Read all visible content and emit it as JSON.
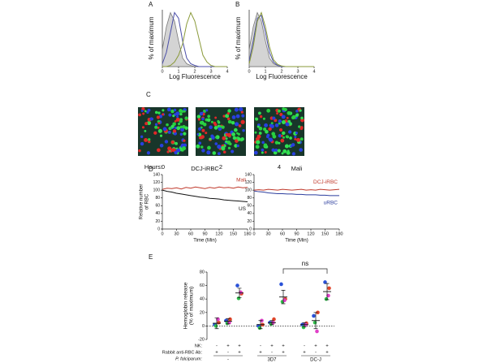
{
  "chart_data": [
    {
      "type": "line",
      "panel": "A",
      "xlabel": "Log Fluorescence",
      "ylabel": "% of maximum",
      "xlim": [
        0,
        4
      ],
      "xticks": [
        0,
        1,
        2,
        3,
        4
      ],
      "ylim": [
        0,
        100
      ],
      "x": [
        0,
        0.25,
        0.5,
        0.75,
        1,
        1.25,
        1.5,
        1.75,
        2,
        2.25,
        2.5,
        2.75,
        3,
        3.25,
        3.5,
        3.75,
        4
      ],
      "series": [
        {
          "color": "#7a7a7a",
          "fill": true,
          "values": [
            30,
            70,
            95,
            80,
            45,
            15,
            5,
            2,
            0,
            0,
            0,
            0,
            0,
            0,
            0,
            0,
            0
          ]
        },
        {
          "color": "#4b4fa8",
          "fill": false,
          "values": [
            5,
            25,
            60,
            95,
            85,
            45,
            15,
            5,
            2,
            0,
            0,
            0,
            0,
            0,
            0,
            0,
            0
          ]
        },
        {
          "color": "#8a9a3a",
          "fill": false,
          "values": [
            0,
            0,
            2,
            8,
            20,
            40,
            75,
            95,
            80,
            50,
            20,
            8,
            2,
            0,
            0,
            0,
            0
          ]
        }
      ]
    },
    {
      "type": "line",
      "panel": "B",
      "xlabel": "Log Fluorescence",
      "ylabel": "% of maximum",
      "xlim": [
        0,
        4
      ],
      "xticks": [
        0,
        1,
        2,
        3,
        4
      ],
      "ylim": [
        0,
        100
      ],
      "x": [
        0,
        0.25,
        0.5,
        0.75,
        1,
        1.25,
        1.5,
        1.75,
        2,
        2.25,
        2.5,
        2.75,
        3,
        3.25,
        3.5,
        3.75,
        4
      ],
      "series": [
        {
          "color": "#7a7a7a",
          "fill": true,
          "values": [
            30,
            70,
            95,
            80,
            45,
            15,
            5,
            2,
            0,
            0,
            0,
            0,
            0,
            0,
            0,
            0,
            0
          ]
        },
        {
          "color": "#4b4fa8",
          "fill": false,
          "values": [
            10,
            45,
            85,
            90,
            60,
            25,
            8,
            2,
            0,
            0,
            0,
            0,
            0,
            0,
            0,
            0,
            0
          ]
        },
        {
          "color": "#8a9a3a",
          "fill": false,
          "values": [
            5,
            35,
            80,
            95,
            70,
            35,
            12,
            4,
            1,
            0,
            0,
            0,
            0,
            0,
            0,
            0,
            0
          ]
        }
      ]
    },
    {
      "type": "images",
      "panel": "C",
      "label": "Hours:",
      "hours": [
        0,
        2,
        4
      ]
    },
    {
      "type": "line",
      "panel": "D",
      "title": "DCJ-iRBC",
      "xlabel": "Time (Min)",
      "ylabel": [
        "Relative number",
        "of RBC"
      ],
      "xlim": [
        0,
        180
      ],
      "xticks": [
        0,
        30,
        60,
        90,
        120,
        150,
        180
      ],
      "ylim": [
        0,
        140
      ],
      "yticks": [
        0,
        20,
        40,
        60,
        80,
        100,
        120,
        140
      ],
      "x": [
        0,
        10,
        20,
        30,
        40,
        50,
        60,
        70,
        80,
        90,
        100,
        110,
        120,
        130,
        140,
        150,
        160,
        170,
        180
      ],
      "series": [
        {
          "name": "Mali",
          "color": "#c0392b",
          "values": [
            102,
            105,
            104,
            106,
            103,
            107,
            105,
            108,
            106,
            104,
            107,
            105,
            108,
            106,
            107,
            105,
            108,
            106,
            107
          ]
        },
        {
          "name": "US",
          "color": "#111111",
          "values": [
            100,
            97,
            95,
            92,
            90,
            88,
            86,
            84,
            82,
            81,
            79,
            78,
            77,
            75,
            74,
            73,
            72,
            71,
            70
          ]
        }
      ]
    },
    {
      "type": "line",
      "title": "Mali",
      "xlabel": "Time (Min)",
      "xlim": [
        0,
        180
      ],
      "xticks": [
        0,
        30,
        60,
        90,
        120,
        150,
        180
      ],
      "ylim": [
        0,
        140
      ],
      "yticks": [
        0,
        20,
        40,
        60,
        80,
        100,
        120,
        140
      ],
      "x": [
        0,
        10,
        20,
        30,
        40,
        50,
        60,
        70,
        80,
        90,
        100,
        110,
        120,
        130,
        140,
        150,
        160,
        170,
        180
      ],
      "series": [
        {
          "name": "DCJ-iRBC",
          "color": "#c0392b",
          "values": [
            100,
            101,
            100,
            102,
            101,
            100,
            102,
            101,
            100,
            101,
            102,
            100,
            101,
            100,
            102,
            101,
            100,
            101,
            102
          ]
        },
        {
          "name": "uRBC",
          "color": "#2c3e9e",
          "values": [
            98,
            96,
            95,
            93,
            92,
            91,
            91,
            90,
            90,
            89,
            89,
            88,
            88,
            88,
            87,
            87,
            86,
            86,
            86
          ]
        }
      ]
    },
    {
      "type": "dot",
      "panel": "E",
      "ylabel": [
        "Hemoglobin release",
        "(% of maximum)"
      ],
      "ylim": [
        -20,
        80
      ],
      "yticks": [
        -20,
        0,
        20,
        40,
        60,
        80
      ],
      "annotation": "ns",
      "series": [
        {
          "color": "#2a52d8",
          "values": [
            2,
            8,
            60,
            0,
            5,
            62,
            2,
            15,
            65
          ]
        },
        {
          "color": "#e0452a",
          "values": [
            5,
            10,
            48,
            2,
            10,
            40,
            4,
            20,
            56
          ]
        },
        {
          "color": "#2fbf4a",
          "values": [
            0,
            4,
            41,
            -3,
            3,
            36,
            -2,
            5,
            40
          ]
        },
        {
          "color": "#e040c8",
          "values": [
            10,
            5,
            50,
            8,
            5,
            38,
            2,
            -8,
            45
          ]
        }
      ],
      "mean": [
        4,
        7,
        49,
        2,
        5,
        43,
        2,
        8,
        51
      ],
      "errors": [
        8,
        4,
        7,
        6,
        3,
        10,
        3,
        12,
        12
      ],
      "rows": [
        {
          "label": "NK:",
          "signs": [
            "-",
            "+",
            "+",
            "-",
            "+",
            "+",
            "-",
            "+",
            "+"
          ]
        },
        {
          "label": "Rabbit anti-RBC Ab:",
          "signs": [
            "+",
            "-",
            "+",
            "+",
            "-",
            "+",
            "+",
            "-",
            "+"
          ]
        }
      ],
      "group_label": "P. falciparum:",
      "groups": [
        "-",
        "3D7",
        "DC-J"
      ]
    }
  ]
}
